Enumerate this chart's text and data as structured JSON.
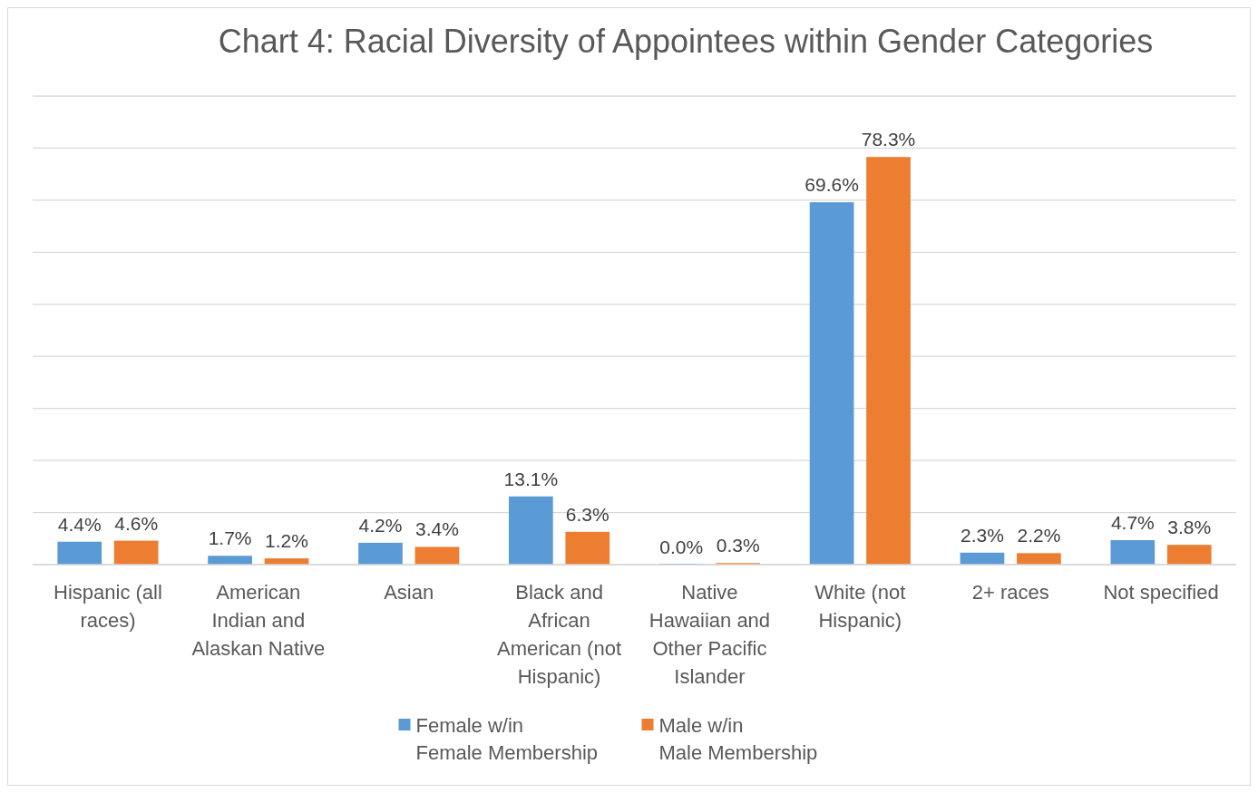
{
  "chart_data": {
    "type": "bar",
    "title": "Chart 4: Racial Diversity of Appointees within Gender Categories",
    "categories": [
      "Hispanic (all races)",
      "American Indian and Alaskan Native",
      "Asian",
      "Black and African American (not Hispanic)",
      "Native Hawaiian and Other Pacific Islander",
      "White (not Hispanic)",
      "2+ races",
      "Not specified"
    ],
    "series": [
      {
        "name": "Female w/in Female Membership",
        "color": "#5b9bd5",
        "values": [
          4.4,
          1.7,
          4.2,
          13.1,
          0.0,
          69.6,
          2.3,
          4.7
        ],
        "value_labels": [
          "4.4%",
          "1.7%",
          "4.2%",
          "13.1%",
          "0.0%",
          "69.6%",
          "2.3%",
          "4.7%"
        ]
      },
      {
        "name": "Male w/in Male Membership",
        "color": "#ed7d31",
        "values": [
          4.6,
          1.2,
          3.4,
          6.3,
          0.3,
          78.3,
          2.2,
          3.8
        ],
        "value_labels": [
          "4.6%",
          "1.2%",
          "3.4%",
          "6.3%",
          "0.3%",
          "78.3%",
          "2.2%",
          "3.8%"
        ]
      }
    ],
    "ylim": [
      0,
      90
    ],
    "yticks": [
      {
        "value": 0,
        "label": null
      },
      {
        "value": 10,
        "label": null
      },
      {
        "value": 20,
        "label": null
      },
      {
        "value": 30,
        "label": null
      },
      {
        "value": 40,
        "label": null
      },
      {
        "value": 50,
        "label": null
      },
      {
        "value": 60,
        "label": null
      },
      {
        "value": 70,
        "label": null
      },
      {
        "value": 80,
        "label": null
      },
      {
        "value": 90,
        "label": null
      }
    ],
    "grid": "y",
    "tick_labels": "x",
    "legend": "bottom"
  }
}
